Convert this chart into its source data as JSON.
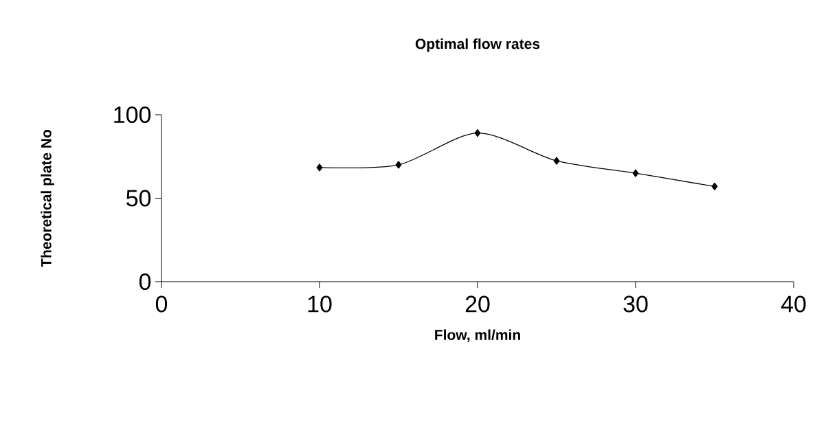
{
  "chart_data": {
    "type": "line",
    "title": "Optimal flow rates",
    "xlabel": "Flow, ml/min",
    "ylabel": "Theoretical plate No",
    "x": [
      10,
      15,
      20,
      25,
      30,
      35
    ],
    "series": [
      {
        "color": "#000000",
        "values": [
          68.4,
          70,
          89,
          72.4,
          65,
          57
        ]
      }
    ],
    "xlim": [
      0,
      40
    ],
    "ylim": [
      0,
      100
    ],
    "xticks": [
      0,
      10,
      20,
      30,
      40
    ],
    "yticks": [
      0,
      50,
      100
    ],
    "grid": false,
    "marker": "diamond",
    "line_style": "solid"
  }
}
